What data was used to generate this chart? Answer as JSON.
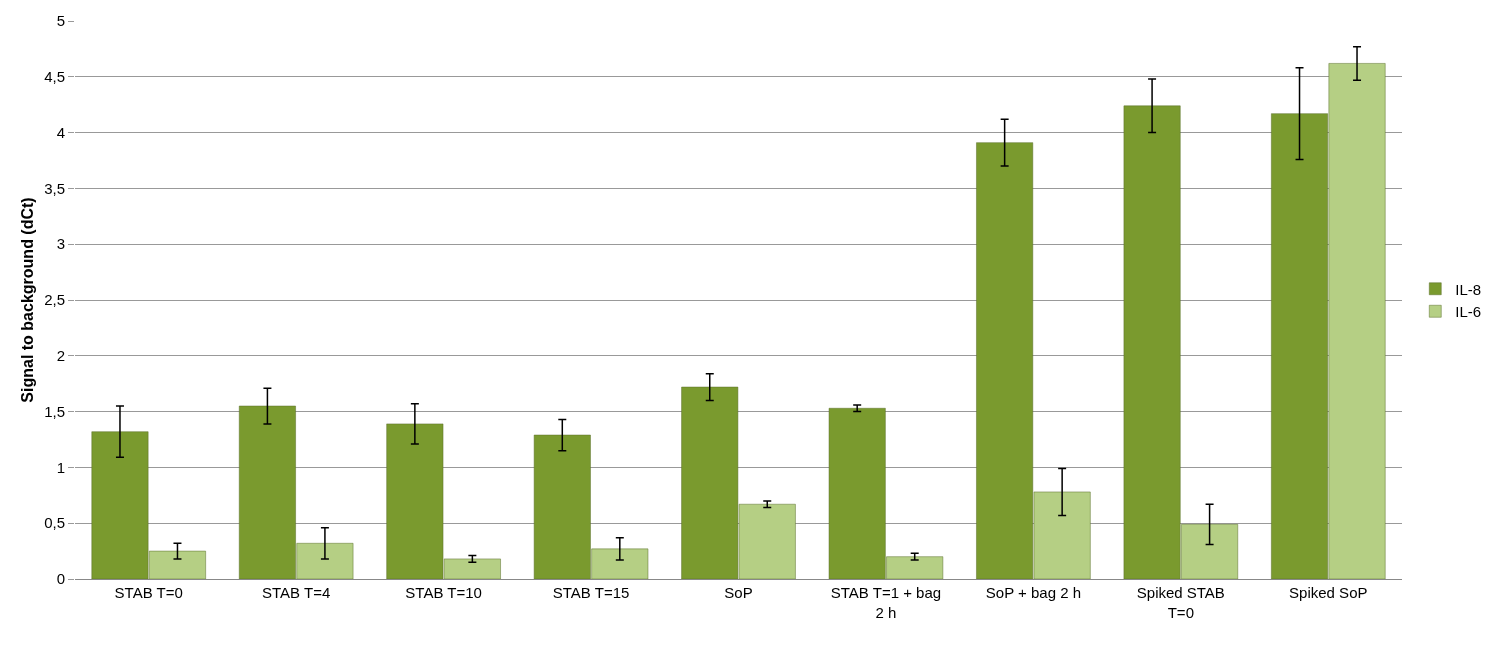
{
  "chart_data": {
    "type": "bar",
    "ylabel": "Signal to background (dCt)",
    "categories": [
      "STAB T=0",
      "STAB T=4",
      "STAB T=10",
      "STAB T=15",
      "SoP",
      "STAB T=1 + bag 2 h",
      "SoP + bag 2 h",
      "Spiked STAB T=0",
      "Spiked SoP"
    ],
    "series": [
      {
        "name": "IL-8",
        "color": "#7a9a2e",
        "values": [
          1.32,
          1.55,
          1.39,
          1.29,
          1.72,
          1.53,
          3.91,
          4.24,
          4.17
        ],
        "errors": [
          0.23,
          0.16,
          0.18,
          0.14,
          0.12,
          0.03,
          0.21,
          0.24,
          0.41
        ]
      },
      {
        "name": "IL-6",
        "color": "#b5cf84",
        "values": [
          0.25,
          0.32,
          0.18,
          0.27,
          0.67,
          0.2,
          0.78,
          0.49,
          4.62
        ],
        "errors": [
          0.07,
          0.14,
          0.03,
          0.1,
          0.03,
          0.03,
          0.21,
          0.18,
          0.15
        ]
      }
    ],
    "ylim": [
      0,
      5
    ],
    "yticks": [
      0,
      {
        "value": 0.5,
        "label": "0,5"
      },
      1,
      {
        "value": 1.5,
        "label": "1,5"
      },
      2,
      {
        "value": 2.5,
        "label": "2,5"
      },
      3,
      {
        "value": 3.5,
        "label": "3,5"
      },
      4,
      {
        "value": 4.5,
        "label": "4,5"
      },
      5
    ],
    "grid": "y",
    "legend": "right"
  }
}
